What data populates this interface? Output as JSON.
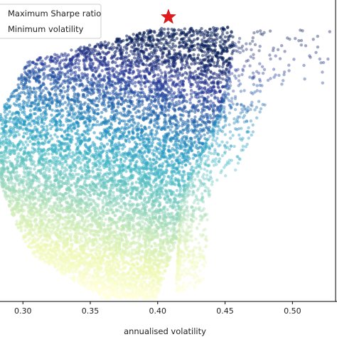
{
  "chart_data": {
    "type": "scatter",
    "title": "",
    "xlabel": "annualised volatility",
    "ylabel": "",
    "xlim": [
      0.283,
      0.532
    ],
    "x_ticks": [
      0.3,
      0.35,
      0.4,
      0.45,
      0.5
    ],
    "x_tick_labels": [
      "0.30",
      "0.35",
      "0.40",
      "0.45",
      "0.50"
    ],
    "grid": false,
    "legend_placement": "upper-left",
    "legend": [
      {
        "label": "Maximum Sharpe ratio",
        "marker": "star",
        "color": "#e31a1c"
      },
      {
        "label": "Minimum volatility",
        "marker": "star",
        "color": "#2ca02c"
      }
    ],
    "series": [
      {
        "description_kind": "simulated portfolios",
        "colormap": "YlGnBu (color = Sharpe ratio)",
        "colormap_stops": [
          "#ffffd9",
          "#edf8b1",
          "#c7e9b4",
          "#7fcdbb",
          "#41b6c4",
          "#1d91c0",
          "#225ea8",
          "#253494",
          "#081d58"
        ],
        "envelope_volatility": [
          0.285,
          0.29,
          0.3,
          0.31,
          0.32,
          0.33,
          0.34,
          0.35,
          0.36,
          0.37,
          0.38,
          0.39,
          0.4,
          0.41,
          0.42,
          0.43,
          0.44,
          0.45,
          0.46,
          0.47
        ],
        "alpha": 0.4
      }
    ],
    "markers": [
      {
        "name": "Maximum Sharpe ratio",
        "x": 0.408,
        "y_rel_top": 0.02,
        "color": "#e31a1c"
      }
    ]
  },
  "colors": {
    "background": "#ffffff",
    "axes": "#000000",
    "star": "#e31a1c"
  }
}
